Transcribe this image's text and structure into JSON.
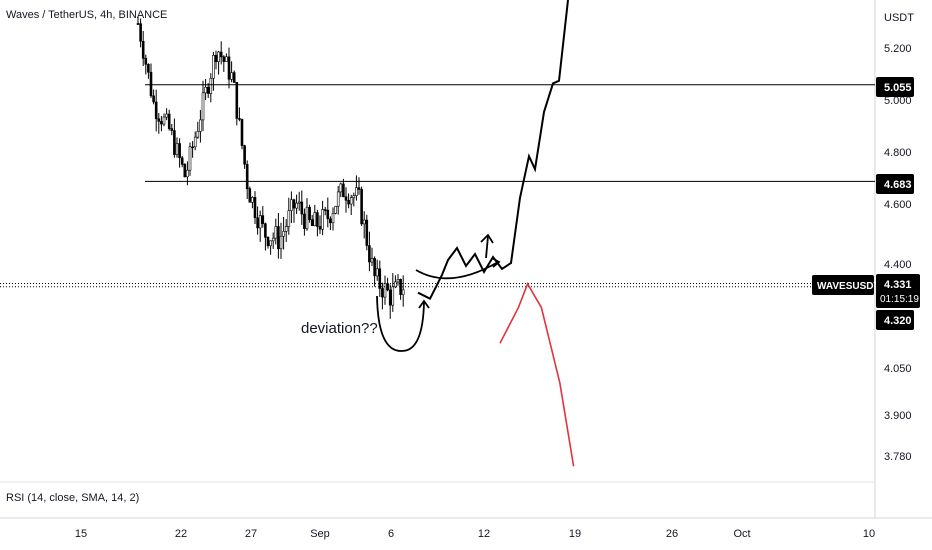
{
  "header": {
    "title": "Waves / TetherUS, 4h, BINANCE"
  },
  "indicator": {
    "label": "RSI (14, close, SMA, 14, 2)"
  },
  "price_axis": {
    "currency": "USDT",
    "ticks": [
      "5.200",
      "5.000",
      "4.800",
      "4.600",
      "4.400",
      "4.050",
      "3.900",
      "3.780"
    ]
  },
  "time_axis": {
    "ticks": [
      "15",
      "22",
      "27",
      "Sep",
      "6",
      "12",
      "19",
      "26",
      "Oct",
      "10"
    ]
  },
  "labels": {
    "level_high": "5.055",
    "level_mid": "4.683",
    "symbol": "WAVESUSDT",
    "last_price": "4.331",
    "countdown": "01:15:19",
    "level_low": "4.320",
    "annotation": "deviation??"
  },
  "colors": {
    "candle_up": "#ffffff",
    "candle_down": "#000000",
    "bullish_path": "#000000",
    "bearish_path": "#e0343e",
    "label_bg": "#000000"
  },
  "chart_data": {
    "type": "candlestick",
    "symbol": "WAVESUSDT",
    "exchange": "BINANCE",
    "interval": "4h",
    "y_axis_unit": "USDT",
    "horizontal_levels": [
      5.055,
      4.683,
      4.32
    ],
    "last_price": 4.331,
    "price_segments": [
      {
        "from": 5.3,
        "to": 4.98
      },
      {
        "from": 4.98,
        "to": 4.88
      },
      {
        "from": 4.88,
        "to": 4.7
      },
      {
        "from": 4.7,
        "to": 4.95
      },
      {
        "from": 4.95,
        "to": 5.2
      },
      {
        "from": 5.2,
        "to": 5.08
      },
      {
        "from": 5.08,
        "to": 4.65
      },
      {
        "from": 4.65,
        "to": 4.5
      },
      {
        "from": 4.5,
        "to": 4.48
      },
      {
        "from": 4.48,
        "to": 4.6
      },
      {
        "from": 4.6,
        "to": 4.52
      },
      {
        "from": 4.52,
        "to": 4.55
      },
      {
        "from": 4.55,
        "to": 4.65
      },
      {
        "from": 4.65,
        "to": 4.62
      },
      {
        "from": 4.62,
        "to": 4.35
      },
      {
        "from": 4.35,
        "to": 4.29
      },
      {
        "from": 4.29,
        "to": 4.33
      }
    ],
    "projection_bullish": [
      [
        0,
        4.3
      ],
      [
        4,
        4.28
      ],
      [
        8,
        4.36
      ],
      [
        10,
        4.41
      ],
      [
        13,
        4.45
      ],
      [
        16,
        4.39
      ],
      [
        19,
        4.43
      ],
      [
        22,
        4.37
      ],
      [
        25,
        4.42
      ],
      [
        28,
        4.38
      ],
      [
        31,
        4.4
      ],
      [
        34,
        4.62
      ],
      [
        37,
        4.78
      ],
      [
        39,
        4.73
      ],
      [
        42,
        4.95
      ],
      [
        45,
        5.06
      ],
      [
        47,
        5.07
      ],
      [
        50,
        5.45
      ]
    ],
    "projection_bearish": [
      [
        0,
        4.13
      ],
      [
        4,
        4.25
      ],
      [
        6,
        4.33
      ],
      [
        9,
        4.25
      ],
      [
        13,
        4.0
      ],
      [
        16,
        3.75
      ]
    ]
  }
}
